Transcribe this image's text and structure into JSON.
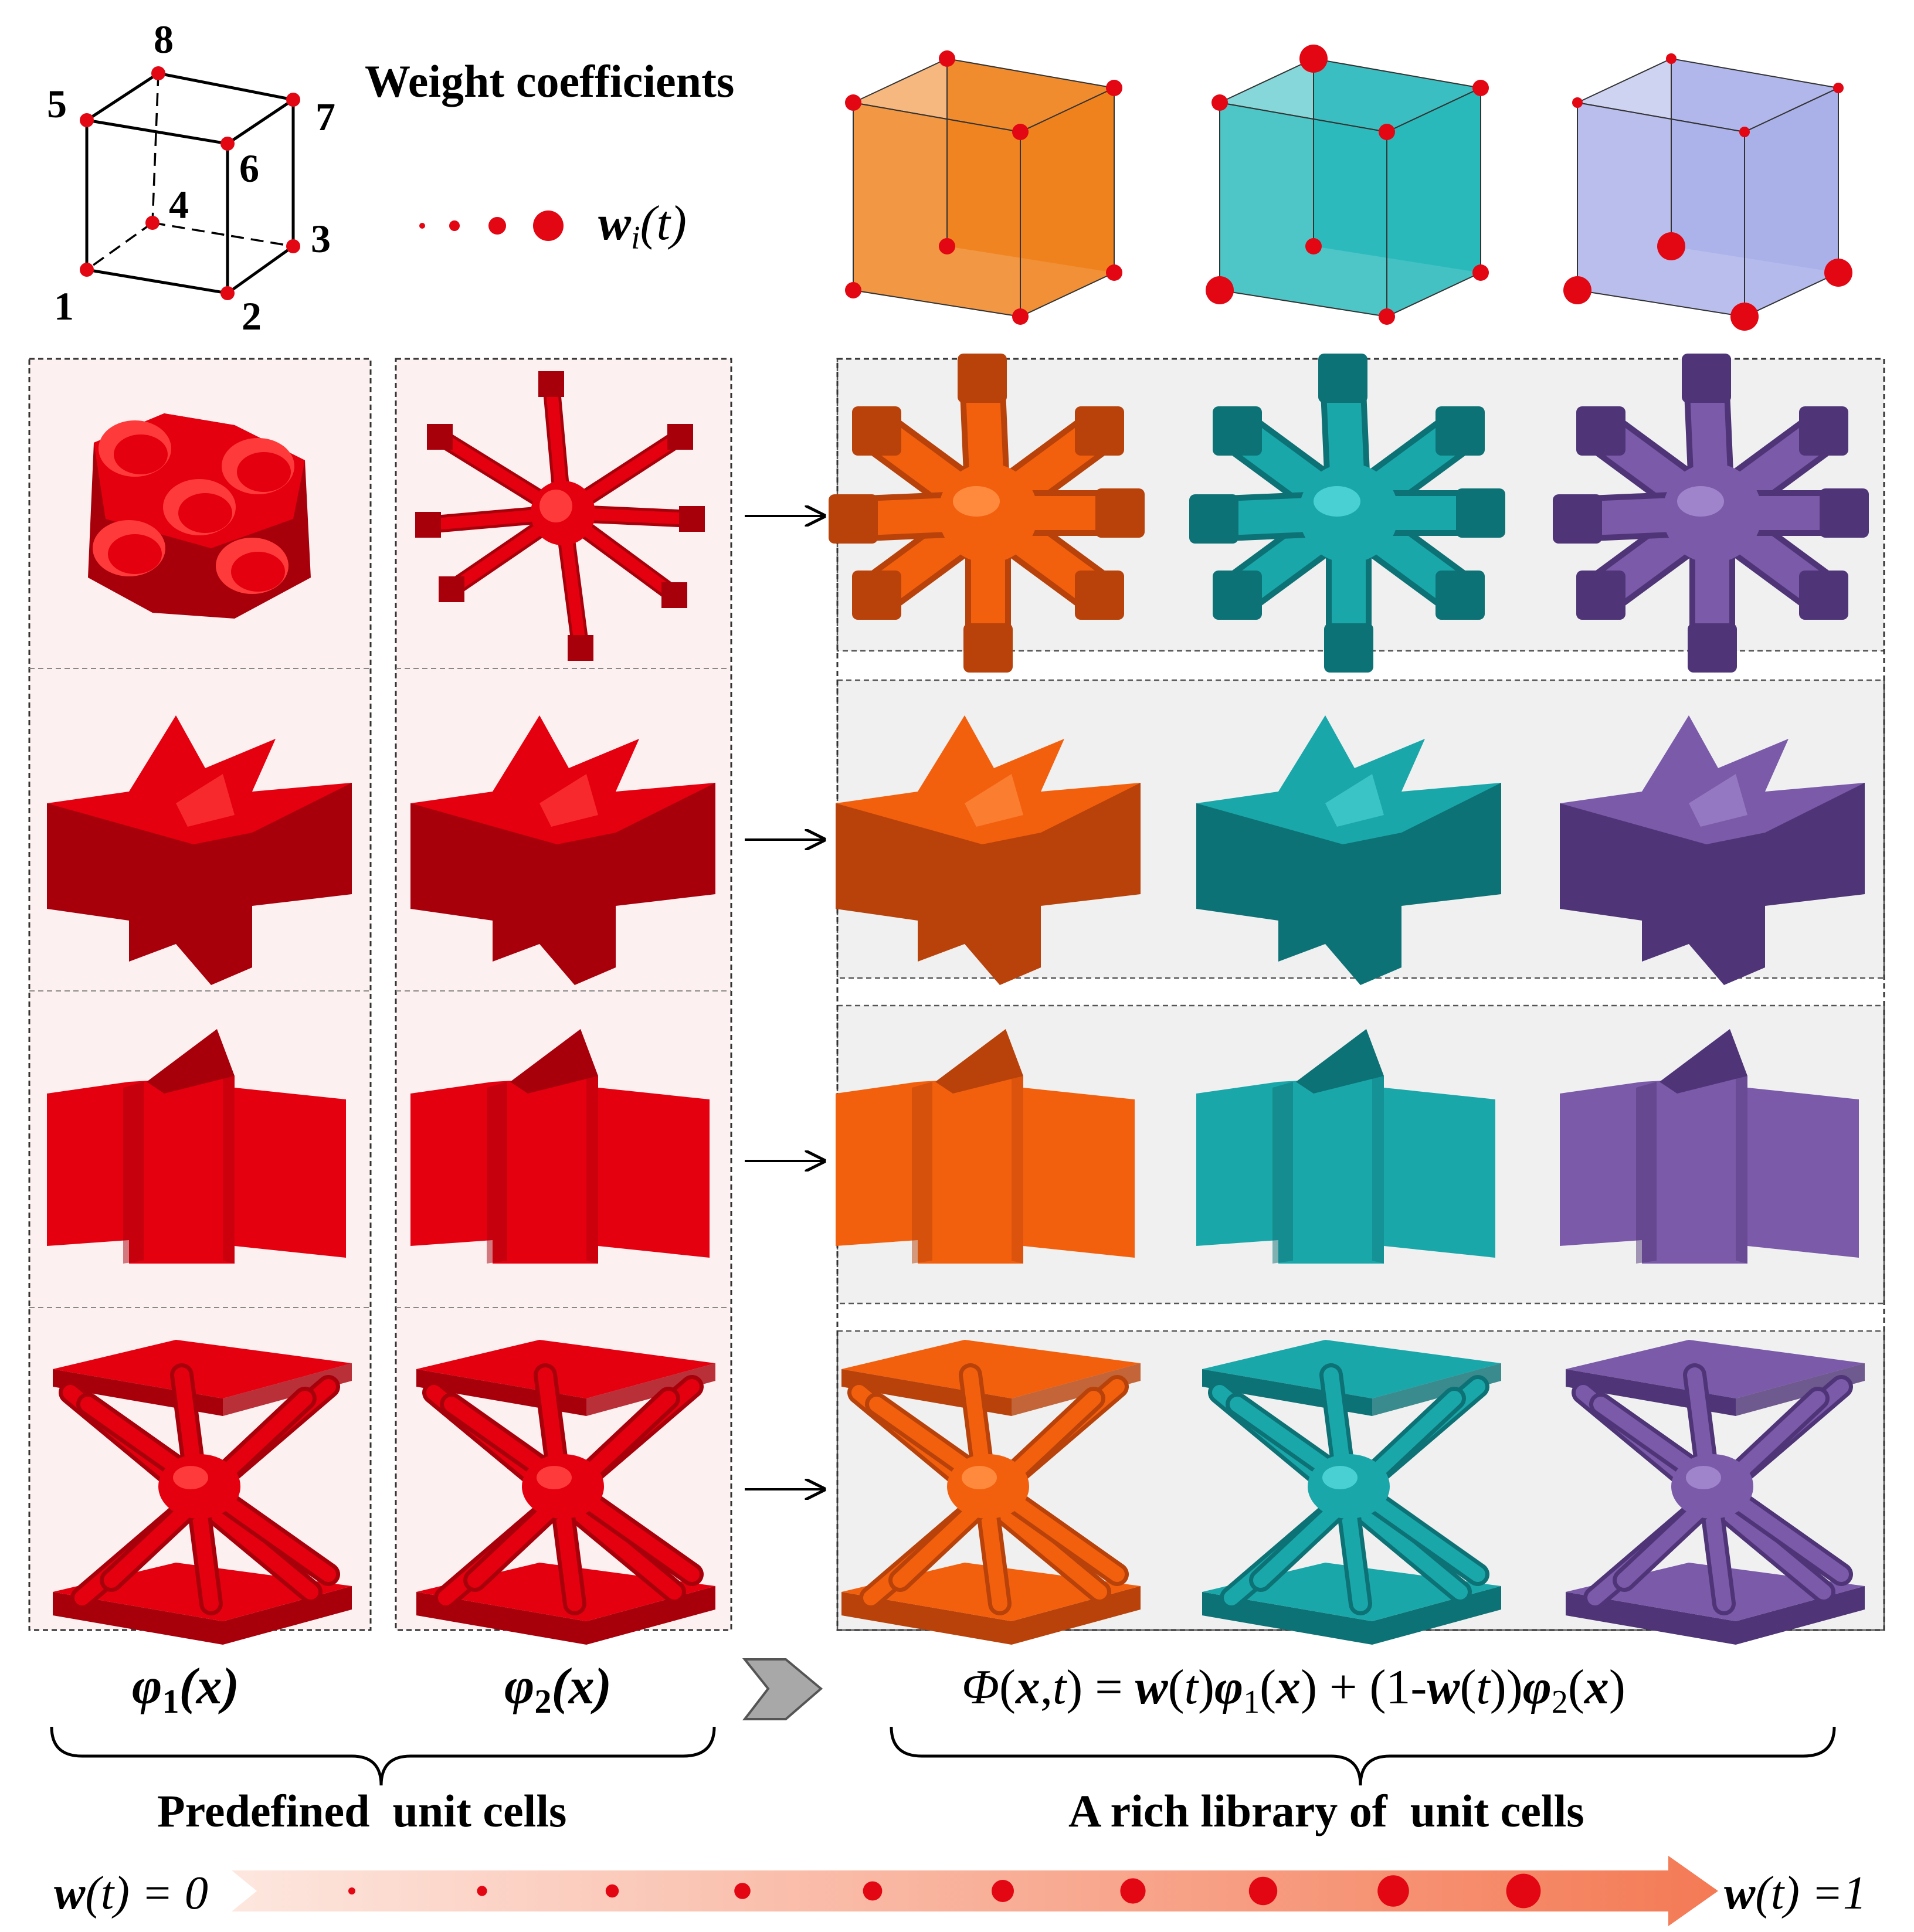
{
  "legend": {
    "title": "Weight coefficients",
    "symbol_w": "w",
    "symbol_sub": "i",
    "symbol_arg": "(t)",
    "vertex_labels": [
      "1",
      "2",
      "3",
      "4",
      "5",
      "6",
      "7",
      "8"
    ]
  },
  "palette": {
    "red": "#e4000f",
    "red_dark": "#a8000b",
    "red_light": "#ff3a3a",
    "orange": "#f2600e",
    "orange_dark": "#b8420a",
    "teal": "#1aa7aa",
    "teal_dark": "#0d7275",
    "purple": "#7a5aa9",
    "purple_dark": "#4f3577",
    "cube_orange": "#ef7d14",
    "cube_teal": "#22b6b9",
    "cube_purple": "#a7aee8",
    "panel_pink": "#fdf0f0",
    "panel_grey": "#f0f0f0",
    "dot": "#e30613",
    "arrow_start": "#fde3da",
    "arrow_end": "#f47a55"
  },
  "sample_cubes": [
    {
      "color": "orange",
      "dot_sizes": [
        1,
        1,
        1,
        1,
        1,
        1,
        1,
        1
      ]
    },
    {
      "color": "teal",
      "dot_sizes": [
        2,
        1,
        1,
        1,
        1,
        1,
        1,
        2
      ]
    },
    {
      "color": "purple",
      "dot_sizes": [
        2,
        2,
        2,
        2,
        0.5,
        0.5,
        0.5,
        0.5
      ]
    }
  ],
  "shapes": [
    "gyroid-cross",
    "star-fin",
    "cross-plate",
    "x-strut-plate"
  ],
  "formulas": {
    "phi1_sym": "φ",
    "phi1_sub": "1",
    "phi1_arg": "(x)",
    "phi2_sym": "φ",
    "phi2_sub": "2",
    "phi2_arg": "(x)",
    "blend": [
      "Φ",
      "(",
      "x",
      ",",
      "t",
      ") = ",
      "w",
      "(",
      "t",
      ")",
      "φ",
      "1",
      "(",
      "x",
      ") + (1-",
      "w",
      "(",
      "t",
      "))",
      "φ",
      "2",
      "(",
      "x",
      ")"
    ]
  },
  "captions": {
    "predefined": "Predefined  unit cells",
    "library": "A rich library of  unit cells"
  },
  "bottom_axis": {
    "left_label_w": "w",
    "left_label_rest": "(t) = 0",
    "right_label_w": "w",
    "right_label_rest": "(t) =1",
    "dot_count": 10
  }
}
